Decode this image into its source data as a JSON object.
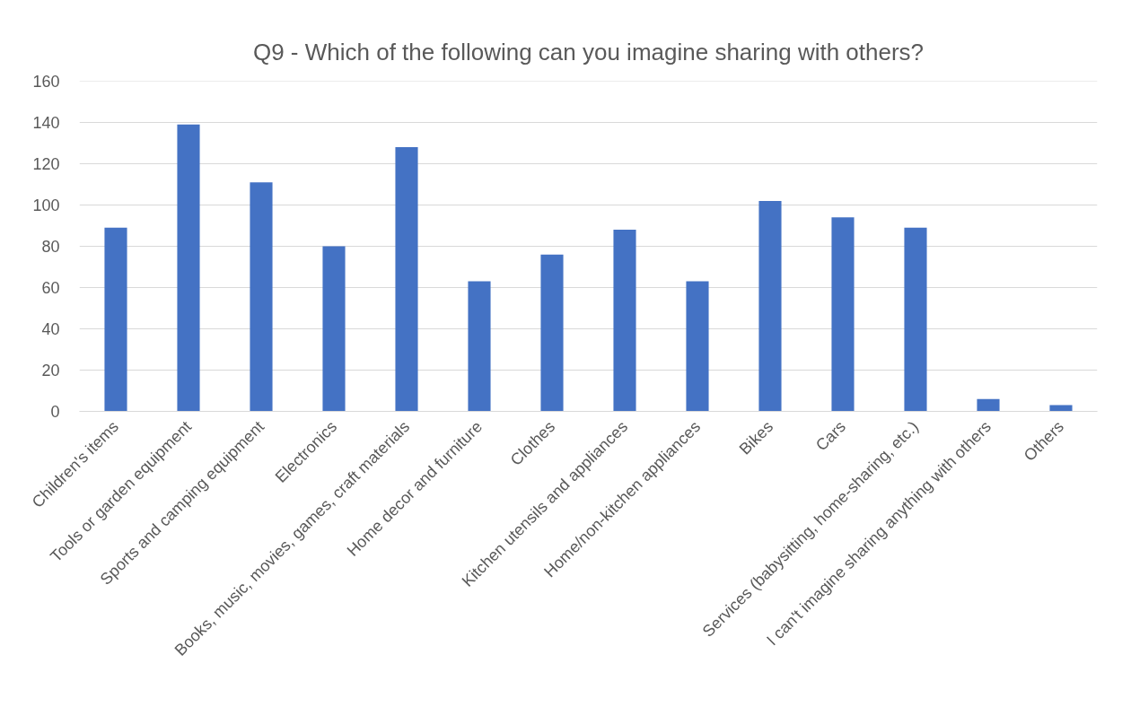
{
  "chart_data": {
    "type": "bar",
    "title": "Q9 - Which of the following can you imagine sharing with others?",
    "categories": [
      "Children's items",
      "Tools or garden equipment",
      "Sports and camping equipment",
      "Electronics",
      "Books, music, movies, games, craft materials",
      "Home decor and furniture",
      "Clothes",
      "Kitchen utensils and appliances",
      "Home/non-kitchen appliances",
      "Bikes",
      "Cars",
      "Services (babysitting, home-sharing, etc.)",
      "I can't imagine sharing anything with others",
      "Others"
    ],
    "values": [
      89,
      139,
      111,
      80,
      128,
      63,
      76,
      88,
      63,
      102,
      94,
      89,
      6,
      3
    ],
    "color": "#4472c4",
    "ylim": [
      0,
      160
    ],
    "yticks": [
      0,
      20,
      40,
      60,
      80,
      100,
      120,
      140,
      160
    ],
    "grid": "y"
  }
}
